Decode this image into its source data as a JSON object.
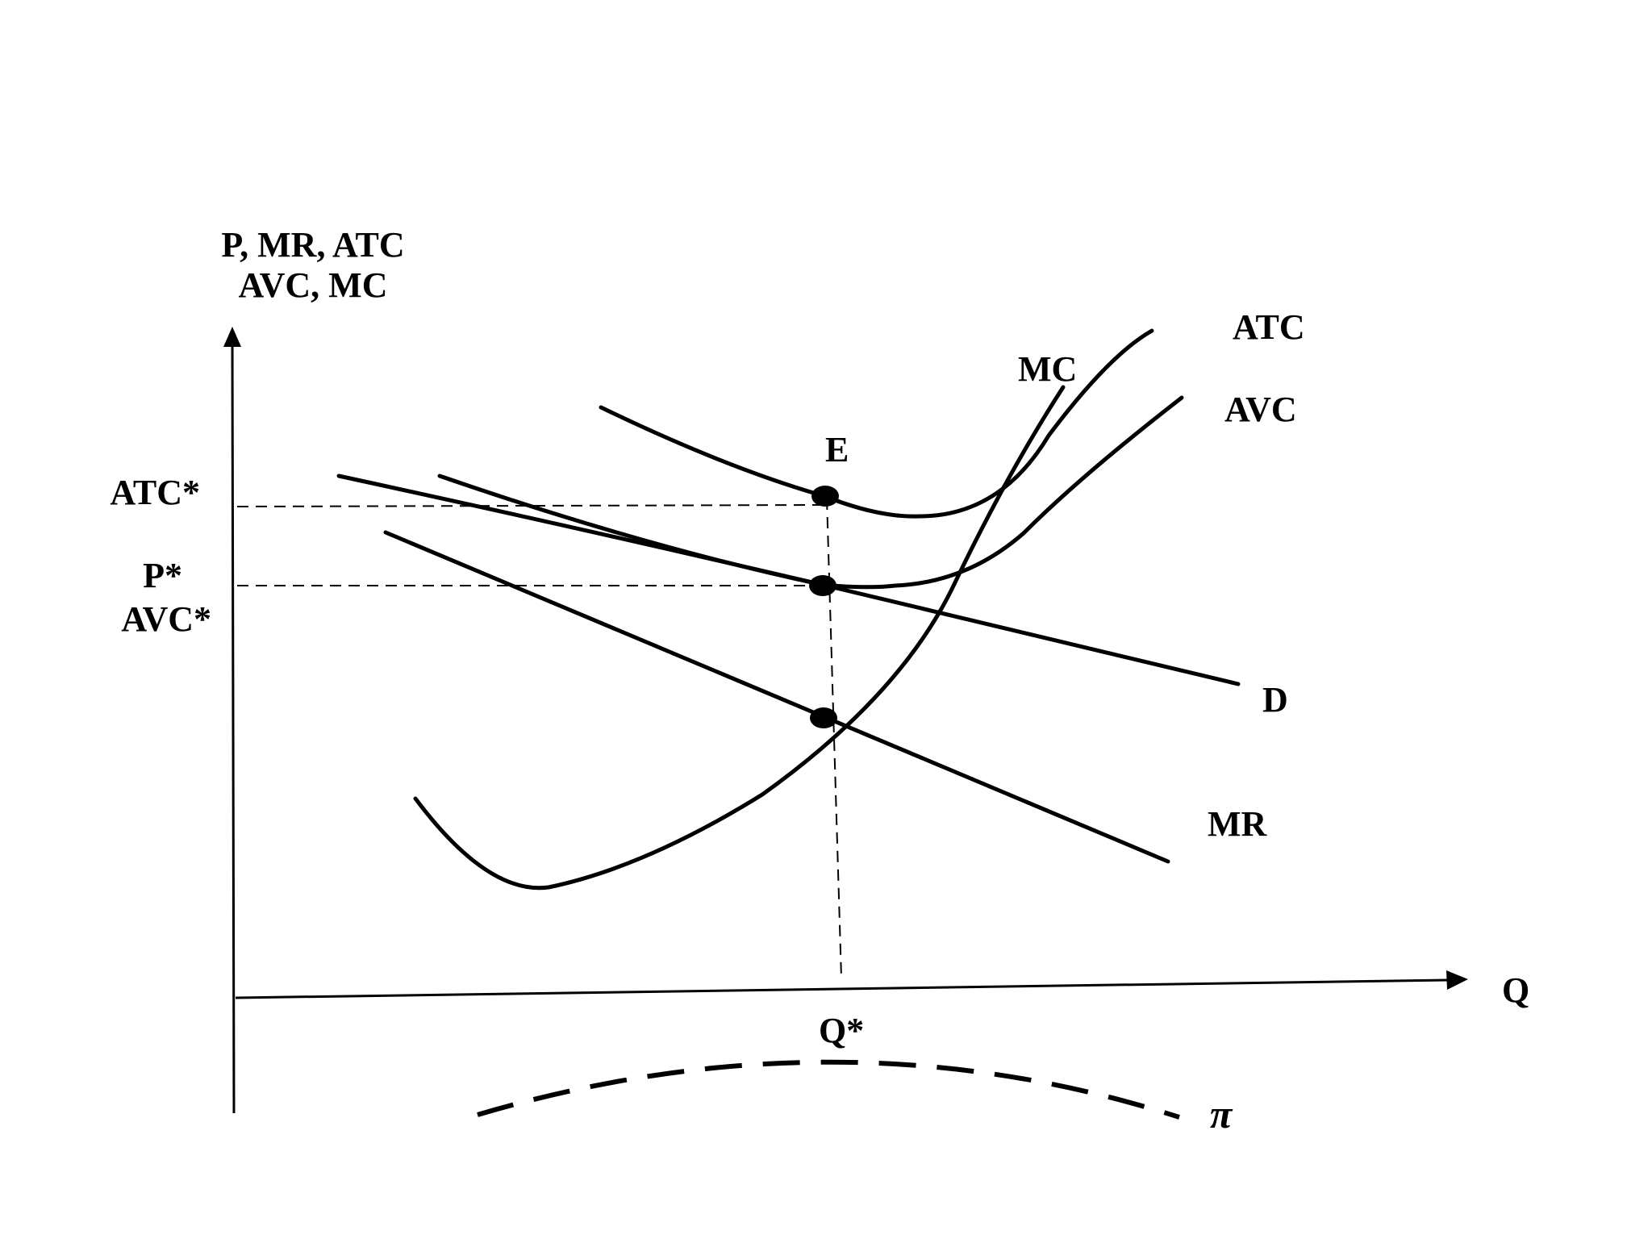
{
  "diagram": {
    "y_axis_label_line1": "P, MR, ATC",
    "y_axis_label_line2": "AVC, MC",
    "x_axis_label": "Q",
    "y_ticks": {
      "atc_star": "ATC*",
      "p_star": "P*",
      "avc_star": "AVC*"
    },
    "x_ticks": {
      "q_star": "Q*"
    },
    "curve_labels": {
      "atc": "ATC",
      "avc": "AVC",
      "mc": "MC",
      "d": "D",
      "mr": "MR",
      "profit": "π"
    },
    "point_labels": {
      "e": "E"
    },
    "colors": {
      "ink": "#000000",
      "background": "#ffffff"
    }
  }
}
